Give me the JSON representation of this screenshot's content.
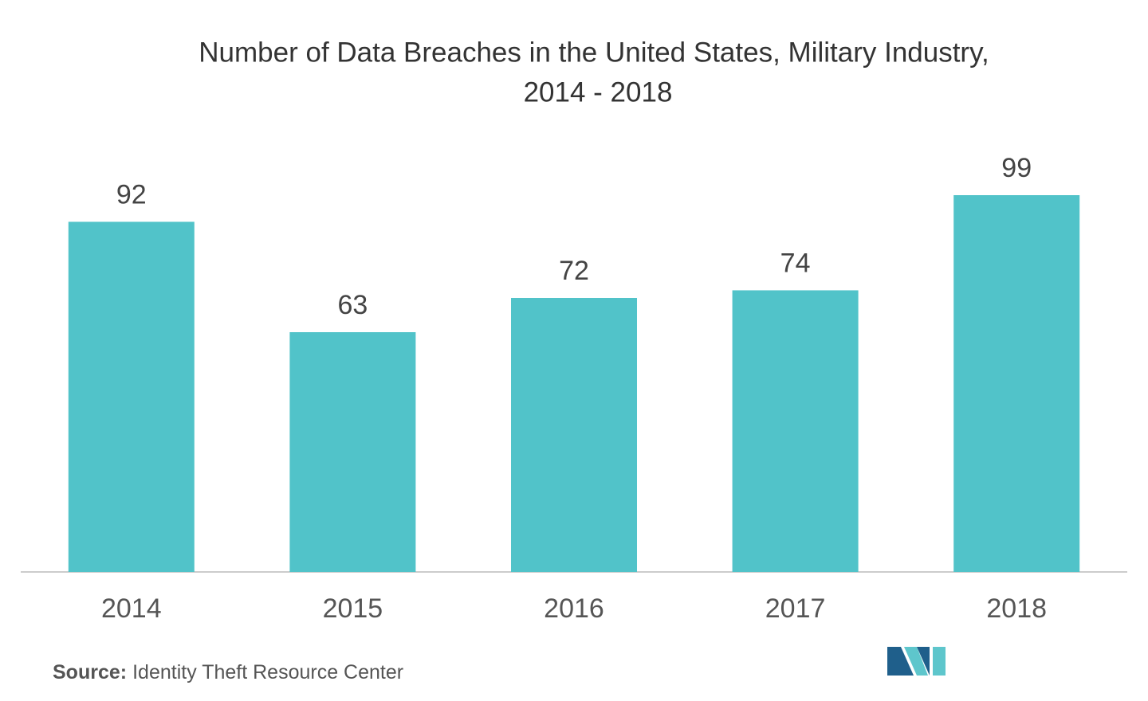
{
  "chart_data": {
    "type": "bar",
    "title": [
      "Number of Data Breaches in the United States, Military Industry,",
      "2014 - 2018"
    ],
    "categories": [
      "2014",
      "2015",
      "2016",
      "2017",
      "2018"
    ],
    "values": [
      92,
      63,
      72,
      74,
      99
    ],
    "color": "#51c3c9",
    "source_label": "Source:",
    "source": "Identity Theft Resource Center"
  }
}
